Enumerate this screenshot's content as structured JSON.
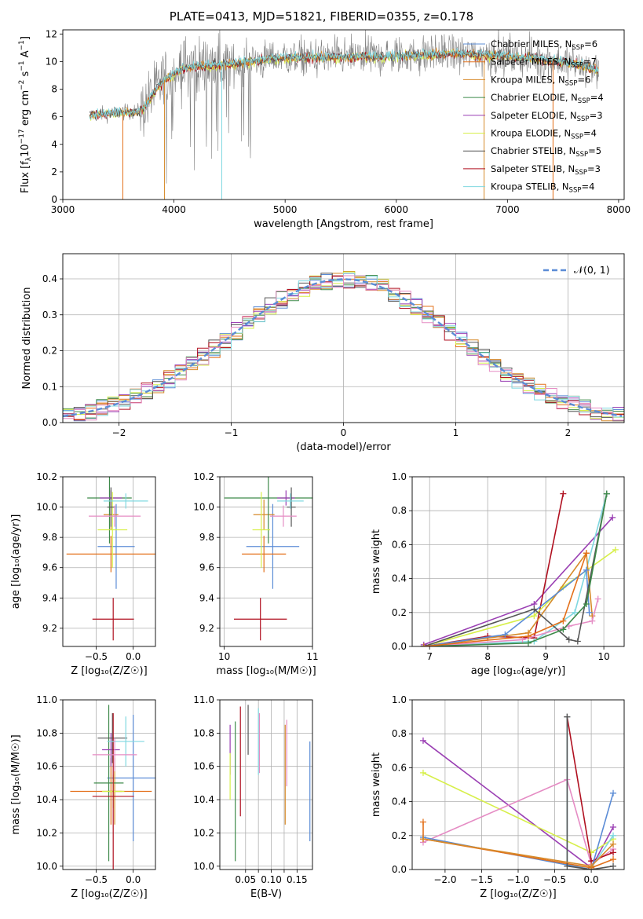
{
  "title": "PLATE=0413, MJD=51821, FIBERID=0355, z=0.178",
  "colors": {
    "chabrier_miles": "#5b8cd6",
    "salpeter_miles": "#e3701a",
    "kroupa_miles": "#d68a2a",
    "chabrier_elodie": "#3e8a4a",
    "salpeter_elodie": "#9a3fb3",
    "kroupa_elodie": "#d7ef4a",
    "chabrier_stelib": "#555555",
    "salpeter_stelib": "#b01020",
    "kroupa_stelib": "#7fd8e0",
    "pink": "#e58cc4",
    "normal": "#5b8cd6",
    "grid": "#b0b0b0"
  },
  "chart_data": [
    {
      "id": "spectrum",
      "type": "line",
      "xlabel": "wavelength [Angstrom, rest frame]",
      "ylabel": "Flux [f_λ10^-17 erg cm^-2 s^-1 A^-1]",
      "xlim": [
        3000,
        8050
      ],
      "ylim": [
        0,
        12.3
      ],
      "xticks": [
        3000,
        4000,
        5000,
        6000,
        7000,
        8000
      ],
      "yticks": [
        0,
        2,
        4,
        6,
        8,
        10,
        12
      ],
      "legend_position": "top-right",
      "legend": [
        {
          "label": "Chabrier MILES, N",
          "sub": "SSP",
          "eq": "=6",
          "color": "#5b8cd6"
        },
        {
          "label": "Salpeter MILES, N",
          "sub": "SSP",
          "eq": "=7",
          "color": "#e3701a"
        },
        {
          "label": "Kroupa MILES, N",
          "sub": "SSP",
          "eq": "=6",
          "color": "#d68a2a"
        },
        {
          "label": "Chabrier ELODIE, N",
          "sub": "SSP",
          "eq": "=4",
          "color": "#3e8a4a"
        },
        {
          "label": "Salpeter ELODIE, N",
          "sub": "SSP",
          "eq": "=3",
          "color": "#9a3fb3"
        },
        {
          "label": "Kroupa ELODIE, N",
          "sub": "SSP",
          "eq": "=4",
          "color": "#d7ef4a"
        },
        {
          "label": "Chabrier STELIB, N",
          "sub": "SSP",
          "eq": "=5",
          "color": "#555555"
        },
        {
          "label": "Salpeter STELIB, N",
          "sub": "SSP",
          "eq": "=3",
          "color": "#b01020"
        },
        {
          "label": "Kroupa STELIB, N",
          "sub": "SSP",
          "eq": "=4",
          "color": "#7fd8e0"
        }
      ],
      "data_range": [
        3240,
        7820
      ],
      "continuum": [
        [
          3240,
          6.1
        ],
        [
          3500,
          6.3
        ],
        [
          3700,
          6.4
        ],
        [
          3900,
          8.6
        ],
        [
          4100,
          9.6
        ],
        [
          4500,
          9.8
        ],
        [
          5000,
          10.3
        ],
        [
          5500,
          10.3
        ],
        [
          6000,
          10.4
        ],
        [
          6500,
          10.6
        ],
        [
          7000,
          10.4
        ],
        [
          7500,
          10.0
        ],
        [
          7820,
          9.4
        ]
      ]
    },
    {
      "id": "residuals",
      "type": "area",
      "xlabel": "(data-model)/error",
      "ylabel": "Normed distribution",
      "xlim": [
        -2.5,
        2.5
      ],
      "ylim": [
        0,
        0.47
      ],
      "xticks": [
        -2,
        -1,
        0,
        1,
        2
      ],
      "xtick_labels": [
        "−2",
        "−1",
        "0",
        "1",
        "2"
      ],
      "yticks": [
        0,
        0.1,
        0.2,
        0.3,
        0.4
      ],
      "legend_position": "top-right",
      "legend": [
        {
          "label": "𝒩(0, 1)",
          "color": "#5b8cd6",
          "style": "dashed"
        }
      ],
      "bin_width": 0.1
    },
    {
      "id": "age_vs_Z",
      "type": "scatter",
      "xlabel": "Z [log₁₀(Z/Z☉)]",
      "ylabel": "age  [log₁₀(age/yr)]",
      "xlim": [
        -0.95,
        0.3
      ],
      "ylim": [
        9.08,
        10.2
      ],
      "xticks": [
        -0.5,
        0.0
      ],
      "xtick_labels": [
        "−0.5",
        "0.0"
      ],
      "yticks": [
        9.2,
        9.4,
        9.6,
        9.8,
        10.0,
        10.2
      ],
      "points": [
        {
          "name": "Chabrier MILES",
          "x": -0.25,
          "xerr": 0.25,
          "y": 9.74,
          "yerr": 0.28,
          "color": "#5b8cd6",
          "xoff": 0.02
        },
        {
          "name": "Salpeter MILES",
          "x": -0.3,
          "xerr": 0.6,
          "y": 9.69,
          "yerr": 0.12,
          "color": "#e3701a",
          "xoff": 0.0
        },
        {
          "name": "Kroupa MILES",
          "x": -0.3,
          "xerr": 0.1,
          "y": 9.95,
          "yerr": 0.1,
          "color": "#d68a2a",
          "xoff": 0.0
        },
        {
          "name": "Chabrier ELODIE",
          "x": -0.18,
          "xerr": 0.3,
          "y": 10.06,
          "yerr": 0.3,
          "color": "#3e8a4a",
          "xoff": -0.14
        },
        {
          "name": "Salpeter ELODIE",
          "x": -0.3,
          "xerr": 0.15,
          "y": 10.06,
          "yerr": 0.05,
          "color": "#9a3fb3",
          "xoff": 0.0
        },
        {
          "name": "Kroupa ELODIE",
          "x": -0.25,
          "xerr": 0.2,
          "y": 9.85,
          "yerr": 0.25,
          "color": "#d7ef4a",
          "xoff": -0.03
        },
        {
          "name": "Chabrier STELIB",
          "x": -0.3,
          "xerr": 0.05,
          "y": 10.0,
          "yerr": 0.13,
          "color": "#555555",
          "xoff": 0.0
        },
        {
          "name": "Salpeter STELIB",
          "x": 0.0,
          "xerr": 0.28,
          "y": 9.26,
          "yerr": 0.14,
          "color": "#b01020",
          "xoff": -0.27
        },
        {
          "name": "Kroupa STELIB",
          "x": -0.1,
          "xerr": 0.3,
          "y": 10.04,
          "yerr": 0.05,
          "color": "#7fd8e0",
          "xoff": 0.0
        },
        {
          "name": "Pink",
          "x": -0.3,
          "xerr": 0.35,
          "y": 9.94,
          "yerr": 0.07,
          "color": "#e58cc4",
          "xoff": 0.05
        }
      ]
    },
    {
      "id": "age_vs_mass",
      "type": "scatter",
      "xlabel": "mass [log₁₀(M/M☉)]",
      "ylabel": "",
      "xlim": [
        9.95,
        11.0
      ],
      "ylim": [
        9.08,
        10.2
      ],
      "xticks": [
        10,
        11
      ],
      "xtick_labels": [
        "10",
        "11"
      ],
      "yticks": [
        9.2,
        9.4,
        9.6,
        9.8,
        10.0,
        10.2
      ],
      "points": [
        {
          "name": "Chabrier MILES",
          "x": 10.55,
          "xerr": 0.3,
          "y": 9.74,
          "yerr": 0.28,
          "color": "#5b8cd6"
        },
        {
          "name": "Salpeter MILES",
          "x": 10.45,
          "xerr": 0.25,
          "y": 9.69,
          "yerr": 0.12,
          "color": "#e3701a"
        },
        {
          "name": "Kroupa MILES",
          "x": 10.45,
          "xerr": 0.12,
          "y": 9.95,
          "yerr": 0.1,
          "color": "#d68a2a"
        },
        {
          "name": "Chabrier ELODIE",
          "x": 10.5,
          "xerr": 0.5,
          "y": 10.06,
          "yerr": 0.3,
          "color": "#3e8a4a"
        },
        {
          "name": "Salpeter ELODIE",
          "x": 10.7,
          "xerr": 0.1,
          "y": 10.06,
          "yerr": 0.05,
          "color": "#9a3fb3"
        },
        {
          "name": "Kroupa ELODIE",
          "x": 10.42,
          "xerr": 0.1,
          "y": 9.85,
          "yerr": 0.25,
          "color": "#d7ef4a"
        },
        {
          "name": "Chabrier STELIB",
          "x": 10.76,
          "xerr": 0.05,
          "y": 10.0,
          "yerr": 0.13,
          "color": "#555555"
        },
        {
          "name": "Salpeter STELIB",
          "x": 10.41,
          "xerr": 0.3,
          "y": 9.26,
          "yerr": 0.14,
          "color": "#b01020"
        },
        {
          "name": "Kroupa STELIB",
          "x": 10.75,
          "xerr": 0.15,
          "y": 10.04,
          "yerr": 0.05,
          "color": "#7fd8e0"
        },
        {
          "name": "Pink",
          "x": 10.67,
          "xerr": 0.15,
          "y": 9.94,
          "yerr": 0.07,
          "color": "#e58cc4"
        }
      ]
    },
    {
      "id": "mass_weight_vs_age",
      "type": "line",
      "xlabel": "age  [log₁₀(age/yr)]",
      "ylabel": "mass weight",
      "xlim": [
        6.7,
        10.35
      ],
      "ylim": [
        0,
        1.0
      ],
      "xticks": [
        7,
        8,
        9,
        10
      ],
      "yticks": [
        0,
        0.2,
        0.4,
        0.6,
        0.8,
        1.0
      ],
      "series": [
        {
          "color": "#9a3fb3",
          "x": [
            6.9,
            8.8,
            10.15
          ],
          "y": [
            0.01,
            0.25,
            0.76
          ]
        },
        {
          "color": "#b01020",
          "x": [
            6.9,
            8.0,
            8.8,
            9.3
          ],
          "y": [
            0.0,
            0.06,
            0.05,
            0.9
          ]
        },
        {
          "color": "#7fd8e0",
          "x": [
            6.9,
            8.8,
            9.5,
            10.05
          ],
          "y": [
            0.0,
            0.03,
            0.2,
            0.9
          ]
        },
        {
          "color": "#d7ef4a",
          "x": [
            6.9,
            8.8,
            9.3,
            10.2
          ],
          "y": [
            0.0,
            0.18,
            0.35,
            0.57
          ]
        },
        {
          "color": "#d68a2a",
          "x": [
            6.9,
            8.7,
            9.7,
            9.8
          ],
          "y": [
            0.0,
            0.08,
            0.55,
            0.18
          ]
        },
        {
          "color": "#5b8cd6",
          "x": [
            6.9,
            8.3,
            9.7,
            9.75
          ],
          "y": [
            0.0,
            0.07,
            0.45,
            0.2
          ]
        },
        {
          "color": "#e58cc4",
          "x": [
            6.9,
            8.6,
            9.4,
            9.8,
            9.9
          ],
          "y": [
            0.0,
            0.04,
            0.12,
            0.15,
            0.28
          ]
        },
        {
          "color": "#555555",
          "x": [
            6.9,
            8.8,
            9.4,
            9.55,
            10.05
          ],
          "y": [
            0.0,
            0.22,
            0.04,
            0.03,
            0.9
          ]
        },
        {
          "color": "#3e8a4a",
          "x": [
            6.9,
            8.7,
            9.3,
            9.7,
            10.05
          ],
          "y": [
            0.0,
            0.02,
            0.1,
            0.25,
            0.9
          ]
        },
        {
          "color": "#e3701a",
          "x": [
            6.9,
            8.7,
            9.3,
            9.7
          ],
          "y": [
            0.0,
            0.06,
            0.15,
            0.55
          ]
        }
      ]
    },
    {
      "id": "mass_vs_Z",
      "type": "scatter",
      "xlabel": "Z [log₁₀(Z/Z☉)]",
      "ylabel": "mass [log₁₀(M/M☉)]",
      "xlim": [
        -0.95,
        0.3
      ],
      "ylim": [
        9.98,
        11.0
      ],
      "xticks": [
        -0.5,
        0.0
      ],
      "xtick_labels": [
        "−0.5",
        "0.0"
      ],
      "yticks": [
        10.0,
        10.2,
        10.4,
        10.6,
        10.8,
        11.0
      ],
      "points": [
        {
          "name": "Chabrier MILES",
          "x": -0.2,
          "xerr": 0.35,
          "y": 10.53,
          "yerr": 0.38,
          "color": "#5b8cd6",
          "xoff": 0.2
        },
        {
          "name": "Salpeter MILES",
          "x": -0.3,
          "xerr": 0.55,
          "y": 10.45,
          "yerr": 0.2,
          "color": "#e3701a",
          "xoff": 0.0
        },
        {
          "name": "Kroupa MILES",
          "x": -0.25,
          "xerr": 0.1,
          "y": 10.45,
          "yerr": 0.2,
          "color": "#d68a2a",
          "xoff": 0.0
        },
        {
          "name": "Chabrier ELODIE",
          "x": -0.1,
          "xerr": 0.2,
          "y": 10.5,
          "yerr": 0.47,
          "color": "#3e8a4a",
          "xoff": -0.23
        },
        {
          "name": "Salpeter ELODIE",
          "x": -0.3,
          "xerr": 0.12,
          "y": 10.7,
          "yerr": 0.1,
          "color": "#9a3fb3",
          "xoff": 0.0
        },
        {
          "name": "Kroupa ELODIE",
          "x": -0.2,
          "xerr": 0.15,
          "y": 10.45,
          "yerr": 0.1,
          "color": "#d7ef4a",
          "xoff": -0.07
        },
        {
          "name": "Chabrier STELIB",
          "x": -0.05,
          "xerr": 0.2,
          "y": 10.77,
          "yerr": 0.15,
          "color": "#555555",
          "xoff": -0.23
        },
        {
          "name": "Salpeter STELIB",
          "x": 0.0,
          "xerr": 0.28,
          "y": 10.42,
          "yerr": 0.5,
          "color": "#b01020",
          "xoff": -0.27
        },
        {
          "name": "Kroupa STELIB",
          "x": -0.1,
          "xerr": 0.25,
          "y": 10.75,
          "yerr": 0.15,
          "color": "#7fd8e0",
          "xoff": 0.0
        },
        {
          "name": "Pink",
          "x": -0.25,
          "xerr": 0.3,
          "y": 10.67,
          "yerr": 0.1,
          "color": "#e58cc4",
          "xoff": 0.0
        }
      ]
    },
    {
      "id": "mass_vs_ebv",
      "type": "scatter",
      "xlabel": "E(B-V)",
      "ylabel": "",
      "xlim": [
        0.0,
        0.18
      ],
      "ylim": [
        9.98,
        11.0
      ],
      "xticks": [
        0.05,
        0.075,
        0.1,
        0.125,
        0.15
      ],
      "xtick_labels": [
        "0.05",
        "0.10",
        "0.15"
      ],
      "xtick_label_values": [
        0.05,
        0.1,
        0.15
      ],
      "yticks": [
        10.0,
        10.2,
        10.4,
        10.6,
        10.8,
        11.0
      ],
      "points": [
        {
          "x": 0.02,
          "y": 10.7,
          "yerr": 0.15,
          "color": "#9a3fb3"
        },
        {
          "x": 0.02,
          "y": 10.54,
          "yerr": 0.14,
          "color": "#d7ef4a"
        },
        {
          "x": 0.03,
          "y": 10.45,
          "yerr": 0.42,
          "color": "#3e8a4a"
        },
        {
          "x": 0.04,
          "y": 10.63,
          "yerr": 0.33,
          "color": "#b01020"
        },
        {
          "x": 0.055,
          "y": 10.82,
          "yerr": 0.15,
          "color": "#555555"
        },
        {
          "x": 0.075,
          "y": 10.75,
          "yerr": 0.2,
          "color": "#7fd8e0"
        },
        {
          "x": 0.077,
          "y": 10.74,
          "yerr": 0.18,
          "color": "#e58cc4"
        },
        {
          "x": 0.127,
          "y": 10.55,
          "yerr": 0.3,
          "color": "#d68a2a"
        },
        {
          "x": 0.13,
          "y": 10.68,
          "yerr": 0.2,
          "color": "#e58cc4"
        },
        {
          "x": 0.175,
          "y": 10.45,
          "yerr": 0.3,
          "color": "#5b8cd6"
        }
      ]
    },
    {
      "id": "mass_weight_vs_Z",
      "type": "line",
      "xlabel": "Z [log₁₀(Z/Z☉)]",
      "ylabel": "mass weight",
      "xlim": [
        -2.45,
        0.45
      ],
      "ylim": [
        0,
        1.0
      ],
      "xticks": [
        -2.0,
        -1.5,
        -1.0,
        -0.5,
        0.0
      ],
      "xtick_labels": [
        "−2.0",
        "−1.5",
        "−1.0",
        "−0.5",
        "0.0"
      ],
      "yticks": [
        0,
        0.2,
        0.4,
        0.6,
        0.8,
        1.0
      ],
      "series": [
        {
          "color": "#9a3fb3",
          "x": [
            -2.3,
            0.0,
            0.3
          ],
          "y": [
            0.76,
            0.01,
            0.25
          ]
        },
        {
          "color": "#d7ef4a",
          "x": [
            -2.3,
            0.0,
            0.3
          ],
          "y": [
            0.57,
            0.1,
            0.18
          ]
        },
        {
          "color": "#e58cc4",
          "x": [
            -2.3,
            -0.33,
            0.0,
            0.3
          ],
          "y": [
            0.16,
            0.53,
            0.03,
            0.12
          ]
        },
        {
          "color": "#b01020",
          "x": [
            -0.33,
            0.0,
            0.3
          ],
          "y": [
            0.9,
            0.05,
            0.1
          ]
        },
        {
          "color": "#7fd8e0",
          "x": [
            -0.33,
            -0.33,
            0.0,
            0.3
          ],
          "y": [
            0.9,
            0.03,
            0.01,
            0.2
          ]
        },
        {
          "color": "#5b8cd6",
          "x": [
            -2.3,
            0.0,
            0.3
          ],
          "y": [
            0.19,
            0.0,
            0.45
          ]
        },
        {
          "color": "#e3701a",
          "x": [
            -2.3,
            -2.3,
            0.0,
            0.3
          ],
          "y": [
            0.28,
            0.18,
            0.01,
            0.06
          ]
        },
        {
          "color": "#555555",
          "x": [
            -0.33,
            -0.33,
            0.0,
            0.3
          ],
          "y": [
            0.9,
            0.02,
            0.0,
            0.02
          ]
        },
        {
          "color": "#d68a2a",
          "x": [
            -2.3,
            0.0,
            0.3
          ],
          "y": [
            0.18,
            0.02,
            0.15
          ]
        }
      ]
    }
  ]
}
